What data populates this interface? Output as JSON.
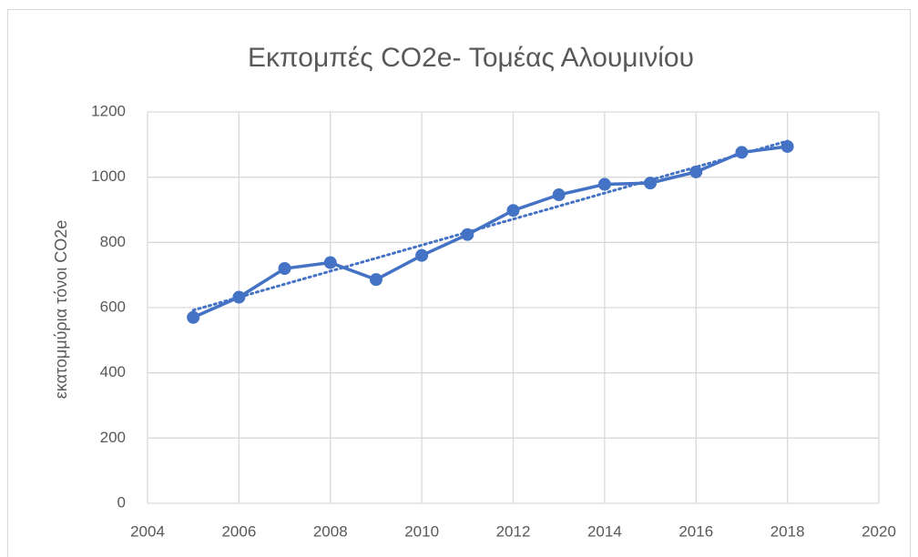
{
  "chart_data": {
    "type": "line",
    "title": "Εκπομπές CO2e- Τομέας Αλουμινίου",
    "y_label": "εκατομμύρια τόνοι CO2e",
    "x": [
      2005,
      2006,
      2007,
      2008,
      2009,
      2010,
      2011,
      2012,
      2013,
      2014,
      2015,
      2016,
      2017,
      2018
    ],
    "series": [
      {
        "name": "CO2e",
        "color": "#4472c4",
        "values": [
          570,
          632,
          720,
          738,
          686,
          760,
          824,
          898,
          946,
          978,
          982,
          1016,
          1076,
          1094
        ]
      }
    ],
    "trendline": "linear",
    "xlim": [
      2004,
      2020
    ],
    "xticks": [
      2004,
      2006,
      2008,
      2010,
      2012,
      2014,
      2016,
      2018,
      2020
    ],
    "ylim": [
      0,
      1200
    ],
    "yticks": [
      0,
      200,
      400,
      600,
      800,
      1000,
      1200
    ],
    "grid": true
  }
}
